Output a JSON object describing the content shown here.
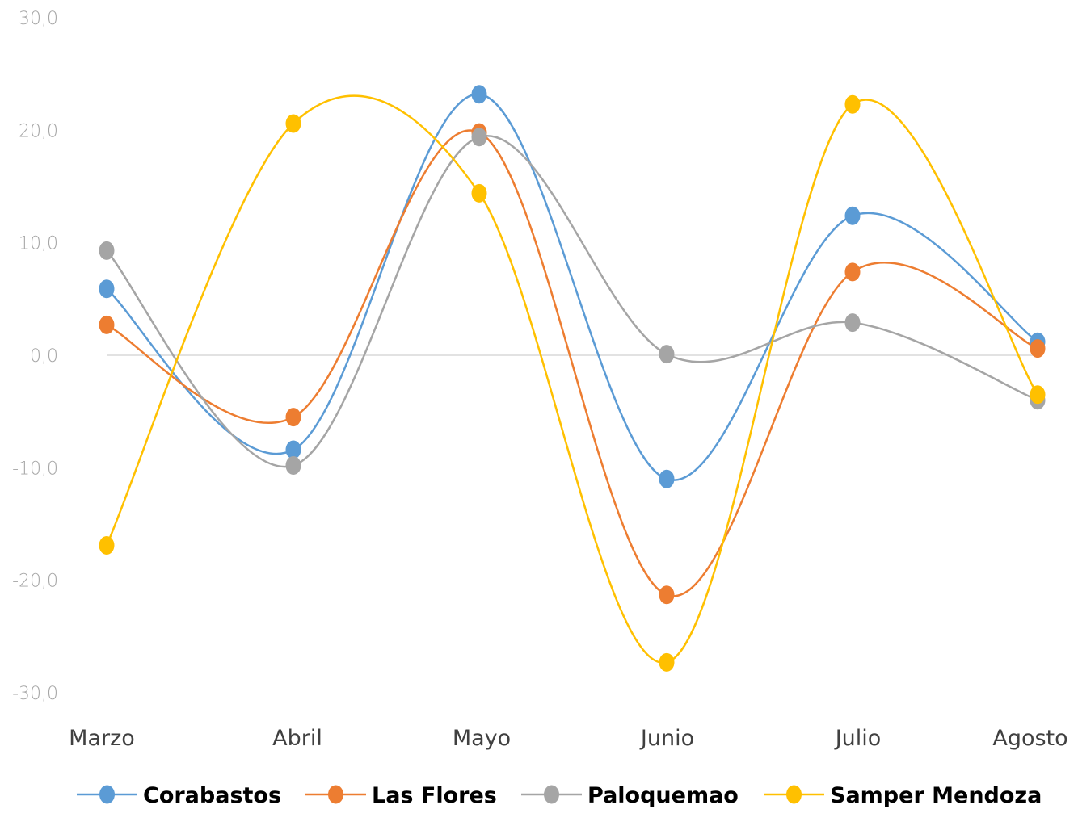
{
  "chart_data": {
    "type": "line",
    "smooth": true,
    "title": "",
    "xlabel": "",
    "ylabel": "",
    "categories": [
      "Marzo",
      "Abril",
      "Mayo",
      "Junio",
      "Julio",
      "Agosto"
    ],
    "ylim": [
      -30,
      30
    ],
    "yticks": [
      30,
      20,
      10,
      0,
      -10,
      -20,
      -30
    ],
    "ytick_labels": [
      "30,0",
      "20,0",
      "10,0",
      "0,0",
      "-10,0",
      "-20,0",
      "-30,0"
    ],
    "grid": "zero line only",
    "legend_position": "bottom",
    "markers": "circle",
    "series": [
      {
        "name": "Corabastos",
        "color": "#5b9bd5",
        "values": [
          5.9,
          -8.4,
          23.2,
          -11.0,
          12.4,
          1.2
        ]
      },
      {
        "name": "Las Flores",
        "color": "#ed7d31",
        "values": [
          2.7,
          -5.5,
          19.8,
          -21.3,
          7.4,
          0.6
        ]
      },
      {
        "name": "Paloquemao",
        "color": "#a5a5a5",
        "values": [
          9.3,
          -9.8,
          19.4,
          0.1,
          2.9,
          -4.0
        ]
      },
      {
        "name": "Samper Mendoza",
        "color": "#ffc000",
        "values": [
          -16.9,
          20.6,
          14.4,
          -27.3,
          22.3,
          -3.5
        ]
      }
    ]
  }
}
